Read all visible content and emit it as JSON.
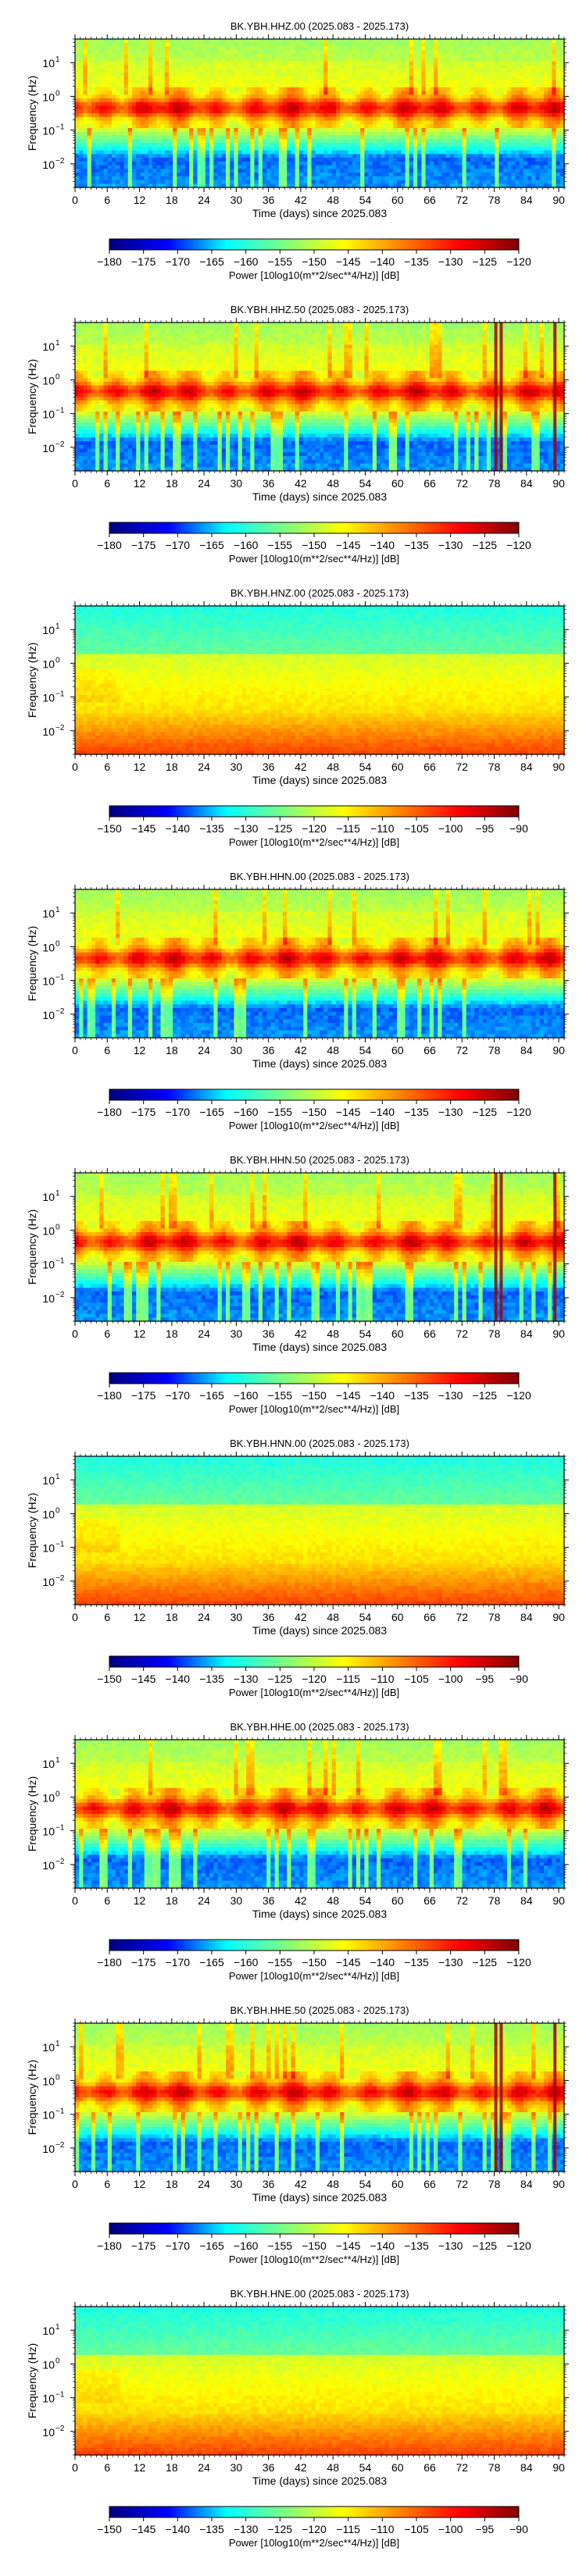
{
  "figure": {
    "x_axis_label": "Time (days) since 2025.083",
    "y_axis_label": "Frequency (Hz)",
    "colorbar_label": "Power [10log10(m**2/sec**4/Hz)] [dB]"
  },
  "chart_data": [
    {
      "type": "heatmap",
      "title": "BK.YBH.HHZ.00 (2025.083 - 2025.173)",
      "channel": "HHZ.00",
      "style": "broadband",
      "xlabel": "Time (days) since 2025.083",
      "ylabel": "Frequency (Hz)",
      "xlim": [
        0,
        91
      ],
      "x_ticks": [
        0,
        6,
        12,
        18,
        24,
        30,
        36,
        42,
        48,
        54,
        60,
        66,
        72,
        78,
        84,
        90
      ],
      "y_scale": "log",
      "ylim": [
        0.002,
        50
      ],
      "y_ticks": [
        {
          "value": 10,
          "label": "10"
        },
        {
          "value": 1,
          "label": "10"
        },
        {
          "value": 0.1,
          "label": "10"
        },
        {
          "value": 0.01,
          "label": "10"
        }
      ],
      "y_tick_exponents": [
        "1",
        "0",
        "−1",
        "−2"
      ],
      "colorbar": {
        "label": "Power [10log10(m**2/sec**4/Hz)] [dB]",
        "range": [
          -180,
          -120
        ],
        "ticks": [
          "−180",
          "−175",
          "−170",
          "−165",
          "−160",
          "−155",
          "−150",
          "−145",
          "−140",
          "−135",
          "−130",
          "−125",
          "−120"
        ]
      },
      "colormap": [
        "#00007f",
        "#0000ff",
        "#00ffff",
        "#7fff7f",
        "#ffff00",
        "#ff7f00",
        "#ff0000",
        "#7f0000"
      ]
    },
    {
      "type": "heatmap",
      "title": "BK.YBH.HHZ.50 (2025.083 - 2025.173)",
      "channel": "HHZ.50",
      "style": "broadband_spikes",
      "xlabel": "Time (days) since 2025.083",
      "ylabel": "Frequency (Hz)",
      "xlim": [
        0,
        91
      ],
      "x_ticks": [
        0,
        6,
        12,
        18,
        24,
        30,
        36,
        42,
        48,
        54,
        60,
        66,
        72,
        78,
        84,
        90
      ],
      "y_scale": "log",
      "ylim": [
        0.002,
        50
      ],
      "y_ticks": [
        {
          "value": 10,
          "label": "10"
        },
        {
          "value": 1,
          "label": "10"
        },
        {
          "value": 0.1,
          "label": "10"
        },
        {
          "value": 0.01,
          "label": "10"
        }
      ],
      "y_tick_exponents": [
        "1",
        "0",
        "−1",
        "−2"
      ],
      "colorbar": {
        "label": "Power [10log10(m**2/sec**4/Hz)] [dB]",
        "range": [
          -180,
          -120
        ],
        "ticks": [
          "−180",
          "−175",
          "−170",
          "−165",
          "−160",
          "−155",
          "−150",
          "−145",
          "−140",
          "−135",
          "−130",
          "−125",
          "−120"
        ]
      },
      "colormap": [
        "#00007f",
        "#0000ff",
        "#00ffff",
        "#7fff7f",
        "#ffff00",
        "#ff7f00",
        "#ff0000",
        "#7f0000"
      ]
    },
    {
      "type": "heatmap",
      "title": "BK.YBH.HNZ.00 (2025.083 - 2025.173)",
      "channel": "HNZ.00",
      "style": "strong_motion",
      "xlabel": "Time (days) since 2025.083",
      "ylabel": "Frequency (Hz)",
      "xlim": [
        0,
        91
      ],
      "x_ticks": [
        0,
        6,
        12,
        18,
        24,
        30,
        36,
        42,
        48,
        54,
        60,
        66,
        72,
        78,
        84,
        90
      ],
      "y_scale": "log",
      "ylim": [
        0.002,
        50
      ],
      "y_ticks": [
        {
          "value": 10,
          "label": "10"
        },
        {
          "value": 1,
          "label": "10"
        },
        {
          "value": 0.1,
          "label": "10"
        },
        {
          "value": 0.01,
          "label": "10"
        }
      ],
      "y_tick_exponents": [
        "1",
        "0",
        "−1",
        "−2"
      ],
      "colorbar": {
        "label": "Power [10log10(m**2/sec**4/Hz)] [dB]",
        "range": [
          -150,
          -90
        ],
        "ticks": [
          "−150",
          "−145",
          "−140",
          "−135",
          "−130",
          "−125",
          "−120",
          "−115",
          "−110",
          "−105",
          "−100",
          "−95",
          "−90"
        ]
      },
      "colormap": [
        "#00007f",
        "#0000ff",
        "#00ffff",
        "#7fff7f",
        "#ffff00",
        "#ff7f00",
        "#ff0000",
        "#7f0000"
      ]
    },
    {
      "type": "heatmap",
      "title": "BK.YBH.HHN.00 (2025.083 - 2025.173)",
      "channel": "HHN.00",
      "style": "broadband",
      "xlabel": "Time (days) since 2025.083",
      "ylabel": "Frequency (Hz)",
      "xlim": [
        0,
        91
      ],
      "x_ticks": [
        0,
        6,
        12,
        18,
        24,
        30,
        36,
        42,
        48,
        54,
        60,
        66,
        72,
        78,
        84,
        90
      ],
      "y_scale": "log",
      "ylim": [
        0.002,
        50
      ],
      "y_ticks": [
        {
          "value": 10,
          "label": "10"
        },
        {
          "value": 1,
          "label": "10"
        },
        {
          "value": 0.1,
          "label": "10"
        },
        {
          "value": 0.01,
          "label": "10"
        }
      ],
      "y_tick_exponents": [
        "1",
        "0",
        "−1",
        "−2"
      ],
      "colorbar": {
        "label": "Power [10log10(m**2/sec**4/Hz)] [dB]",
        "range": [
          -180,
          -120
        ],
        "ticks": [
          "−180",
          "−175",
          "−170",
          "−165",
          "−160",
          "−155",
          "−150",
          "−145",
          "−140",
          "−135",
          "−130",
          "−125",
          "−120"
        ]
      },
      "colormap": [
        "#00007f",
        "#0000ff",
        "#00ffff",
        "#7fff7f",
        "#ffff00",
        "#ff7f00",
        "#ff0000",
        "#7f0000"
      ]
    },
    {
      "type": "heatmap",
      "title": "BK.YBH.HHN.50 (2025.083 - 2025.173)",
      "channel": "HHN.50",
      "style": "broadband_spikes",
      "xlabel": "Time (days) since 2025.083",
      "ylabel": "Frequency (Hz)",
      "xlim": [
        0,
        91
      ],
      "x_ticks": [
        0,
        6,
        12,
        18,
        24,
        30,
        36,
        42,
        48,
        54,
        60,
        66,
        72,
        78,
        84,
        90
      ],
      "y_scale": "log",
      "ylim": [
        0.002,
        50
      ],
      "y_ticks": [
        {
          "value": 10,
          "label": "10"
        },
        {
          "value": 1,
          "label": "10"
        },
        {
          "value": 0.1,
          "label": "10"
        },
        {
          "value": 0.01,
          "label": "10"
        }
      ],
      "y_tick_exponents": [
        "1",
        "0",
        "−1",
        "−2"
      ],
      "colorbar": {
        "label": "Power [10log10(m**2/sec**4/Hz)] [dB]",
        "range": [
          -180,
          -120
        ],
        "ticks": [
          "−180",
          "−175",
          "−170",
          "−165",
          "−160",
          "−155",
          "−150",
          "−145",
          "−140",
          "−135",
          "−130",
          "−125",
          "−120"
        ]
      },
      "colormap": [
        "#00007f",
        "#0000ff",
        "#00ffff",
        "#7fff7f",
        "#ffff00",
        "#ff7f00",
        "#ff0000",
        "#7f0000"
      ]
    },
    {
      "type": "heatmap",
      "title": "BK.YBH.HNN.00 (2025.083 - 2025.173)",
      "channel": "HNN.00",
      "style": "strong_motion",
      "xlabel": "Time (days) since 2025.083",
      "ylabel": "Frequency (Hz)",
      "xlim": [
        0,
        91
      ],
      "x_ticks": [
        0,
        6,
        12,
        18,
        24,
        30,
        36,
        42,
        48,
        54,
        60,
        66,
        72,
        78,
        84,
        90
      ],
      "y_scale": "log",
      "ylim": [
        0.002,
        50
      ],
      "y_ticks": [
        {
          "value": 10,
          "label": "10"
        },
        {
          "value": 1,
          "label": "10"
        },
        {
          "value": 0.1,
          "label": "10"
        },
        {
          "value": 0.01,
          "label": "10"
        }
      ],
      "y_tick_exponents": [
        "1",
        "0",
        "−1",
        "−2"
      ],
      "colorbar": {
        "label": "Power [10log10(m**2/sec**4/Hz)] [dB]",
        "range": [
          -150,
          -90
        ],
        "ticks": [
          "−150",
          "−145",
          "−140",
          "−135",
          "−130",
          "−125",
          "−120",
          "−115",
          "−110",
          "−105",
          "−100",
          "−95",
          "−90"
        ]
      },
      "colormap": [
        "#00007f",
        "#0000ff",
        "#00ffff",
        "#7fff7f",
        "#ffff00",
        "#ff7f00",
        "#ff0000",
        "#7f0000"
      ]
    },
    {
      "type": "heatmap",
      "title": "BK.YBH.HHE.00 (2025.083 - 2025.173)",
      "channel": "HHE.00",
      "style": "broadband",
      "xlabel": "Time (days) since 2025.083",
      "ylabel": "Frequency (Hz)",
      "xlim": [
        0,
        91
      ],
      "x_ticks": [
        0,
        6,
        12,
        18,
        24,
        30,
        36,
        42,
        48,
        54,
        60,
        66,
        72,
        78,
        84,
        90
      ],
      "y_scale": "log",
      "ylim": [
        0.002,
        50
      ],
      "y_ticks": [
        {
          "value": 10,
          "label": "10"
        },
        {
          "value": 1,
          "label": "10"
        },
        {
          "value": 0.1,
          "label": "10"
        },
        {
          "value": 0.01,
          "label": "10"
        }
      ],
      "y_tick_exponents": [
        "1",
        "0",
        "−1",
        "−2"
      ],
      "colorbar": {
        "label": "Power [10log10(m**2/sec**4/Hz)] [dB]",
        "range": [
          -180,
          -120
        ],
        "ticks": [
          "−180",
          "−175",
          "−170",
          "−165",
          "−160",
          "−155",
          "−150",
          "−145",
          "−140",
          "−135",
          "−130",
          "−125",
          "−120"
        ]
      },
      "colormap": [
        "#00007f",
        "#0000ff",
        "#00ffff",
        "#7fff7f",
        "#ffff00",
        "#ff7f00",
        "#ff0000",
        "#7f0000"
      ]
    },
    {
      "type": "heatmap",
      "title": "BK.YBH.HHE.50 (2025.083 - 2025.173)",
      "channel": "HHE.50",
      "style": "broadband_spikes",
      "xlabel": "Time (days) since 2025.083",
      "ylabel": "Frequency (Hz)",
      "xlim": [
        0,
        91
      ],
      "x_ticks": [
        0,
        6,
        12,
        18,
        24,
        30,
        36,
        42,
        48,
        54,
        60,
        66,
        72,
        78,
        84,
        90
      ],
      "y_scale": "log",
      "ylim": [
        0.002,
        50
      ],
      "y_ticks": [
        {
          "value": 10,
          "label": "10"
        },
        {
          "value": 1,
          "label": "10"
        },
        {
          "value": 0.1,
          "label": "10"
        },
        {
          "value": 0.01,
          "label": "10"
        }
      ],
      "y_tick_exponents": [
        "1",
        "0",
        "−1",
        "−2"
      ],
      "colorbar": {
        "label": "Power [10log10(m**2/sec**4/Hz)] [dB]",
        "range": [
          -180,
          -120
        ],
        "ticks": [
          "−180",
          "−175",
          "−170",
          "−165",
          "−160",
          "−155",
          "−150",
          "−145",
          "−140",
          "−135",
          "−130",
          "−125",
          "−120"
        ]
      },
      "colormap": [
        "#00007f",
        "#0000ff",
        "#00ffff",
        "#7fff7f",
        "#ffff00",
        "#ff7f00",
        "#ff0000",
        "#7f0000"
      ]
    },
    {
      "type": "heatmap",
      "title": "BK.YBH.HNE.00 (2025.083 - 2025.173)",
      "channel": "HNE.00",
      "style": "strong_motion",
      "xlabel": "Time (days) since 2025.083",
      "ylabel": "Frequency (Hz)",
      "xlim": [
        0,
        91
      ],
      "x_ticks": [
        0,
        6,
        12,
        18,
        24,
        30,
        36,
        42,
        48,
        54,
        60,
        66,
        72,
        78,
        84,
        90
      ],
      "y_scale": "log",
      "ylim": [
        0.002,
        50
      ],
      "y_ticks": [
        {
          "value": 10,
          "label": "10"
        },
        {
          "value": 1,
          "label": "10"
        },
        {
          "value": 0.1,
          "label": "10"
        },
        {
          "value": 0.01,
          "label": "10"
        }
      ],
      "y_tick_exponents": [
        "1",
        "0",
        "−1",
        "−2"
      ],
      "colorbar": {
        "label": "Power [10log10(m**2/sec**4/Hz)] [dB]",
        "range": [
          -150,
          -90
        ],
        "ticks": [
          "−150",
          "−145",
          "−140",
          "−135",
          "−130",
          "−125",
          "−120",
          "−115",
          "−110",
          "−105",
          "−100",
          "−95",
          "−90"
        ]
      },
      "colormap": [
        "#00007f",
        "#0000ff",
        "#00ffff",
        "#7fff7f",
        "#ffff00",
        "#ff7f00",
        "#ff0000",
        "#7f0000"
      ]
    }
  ]
}
